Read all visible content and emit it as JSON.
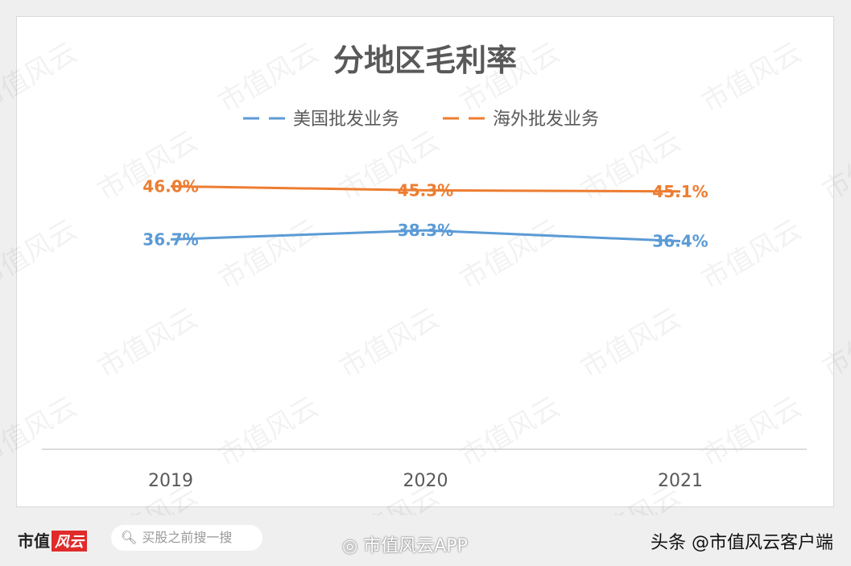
{
  "chart_data": {
    "type": "line",
    "title": "分地区毛利率",
    "categories": [
      "2019",
      "2020",
      "2021"
    ],
    "series": [
      {
        "name": "美国批发业务",
        "values": [
          36.7,
          38.3,
          36.4
        ],
        "labels": [
          "36.7%",
          "38.3%",
          "36.4%"
        ],
        "color": "#5b9bd5"
      },
      {
        "name": "海外批发业务",
        "values": [
          46.0,
          45.3,
          45.1
        ],
        "labels": [
          "46.0%",
          "45.3%",
          "45.1%"
        ],
        "color": "#ed7d31"
      }
    ],
    "ylim": [
      0,
      50
    ],
    "grid": false,
    "legend": "top-center",
    "y_axis_visible": false
  },
  "watermark": "市值风云",
  "footer": {
    "logo_text": "市值",
    "logo_badge": "风云",
    "search_placeholder": "买股之前搜一搜",
    "weibo_text": "市值风云APP",
    "toutiao_text": "头条 @市值风云客户端"
  }
}
